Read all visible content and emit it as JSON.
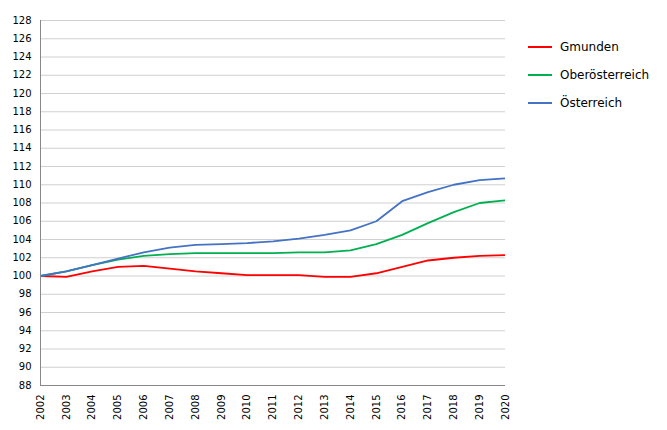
{
  "chart_data": {
    "type": "line",
    "x": [
      2002,
      2003,
      2004,
      2005,
      2006,
      2007,
      2008,
      2009,
      2010,
      2011,
      2012,
      2013,
      2014,
      2015,
      2016,
      2017,
      2018,
      2019,
      2020
    ],
    "series": [
      {
        "name": "Gmunden",
        "color": "#ff0000",
        "values": [
          100.0,
          99.9,
          100.5,
          101.0,
          101.1,
          100.8,
          100.5,
          100.3,
          100.1,
          100.1,
          100.1,
          99.9,
          99.9,
          100.3,
          101.0,
          101.7,
          102.0,
          102.2,
          102.3
        ]
      },
      {
        "name": "Oberösterreich",
        "color": "#00b050",
        "values": [
          100.0,
          100.5,
          101.2,
          101.8,
          102.2,
          102.4,
          102.5,
          102.5,
          102.5,
          102.5,
          102.6,
          102.6,
          102.8,
          103.5,
          104.5,
          105.8,
          107.0,
          108.0,
          108.3
        ]
      },
      {
        "name": "Österreich",
        "color": "#4472c4",
        "values": [
          100.0,
          100.5,
          101.2,
          101.9,
          102.6,
          103.1,
          103.4,
          103.5,
          103.6,
          103.8,
          104.1,
          104.5,
          105.0,
          106.0,
          108.2,
          109.2,
          110.0,
          110.5,
          110.7
        ]
      }
    ],
    "xlim": [
      2002,
      2020
    ],
    "xticks": [
      2002,
      2003,
      2004,
      2005,
      2006,
      2007,
      2008,
      2009,
      2010,
      2011,
      2012,
      2013,
      2014,
      2015,
      2016,
      2017,
      2018,
      2019,
      2020
    ],
    "ylim": [
      88,
      128
    ],
    "yticks": [
      88,
      90,
      92,
      94,
      96,
      98,
      100,
      102,
      104,
      106,
      108,
      110,
      112,
      114,
      116,
      118,
      120,
      122,
      124,
      126,
      128
    ],
    "grid": true,
    "legend": "right"
  }
}
